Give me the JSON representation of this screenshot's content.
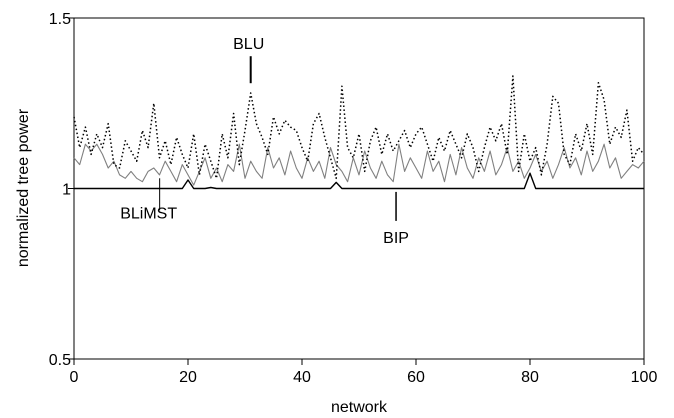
{
  "chart_data": {
    "type": "line",
    "title": "",
    "xlabel": "network",
    "ylabel": "normalized tree power",
    "xlim": [
      0,
      100
    ],
    "ylim": [
      0.5,
      1.5
    ],
    "x_ticks": [
      "0",
      "20",
      "40",
      "60",
      "80",
      "100"
    ],
    "y_ticks": [
      "0.5",
      "1",
      "1.5"
    ],
    "x_tick_values": [
      0,
      20,
      40,
      60,
      80,
      100
    ],
    "y_tick_values": [
      0.5,
      1.0,
      1.5
    ],
    "grid": false,
    "series": [
      {
        "name": "BIP",
        "style": "solid",
        "color": "#000000",
        "points": [
          [
            0,
            1.0
          ],
          [
            19,
            1.0
          ],
          [
            20,
            1.025
          ],
          [
            21,
            1.0
          ],
          [
            23,
            1.0
          ],
          [
            24,
            1.003
          ],
          [
            25,
            1.0
          ],
          [
            45,
            1.0
          ],
          [
            46,
            1.018
          ],
          [
            47,
            1.0
          ],
          [
            79,
            1.0
          ],
          [
            80,
            1.045
          ],
          [
            81,
            1.0
          ],
          [
            100,
            1.0
          ]
        ]
      },
      {
        "name": "BLiMST",
        "style": "solid",
        "color": "#808080",
        "values": [
          1.09,
          1.07,
          1.13,
          1.11,
          1.13,
          1.1,
          1.06,
          1.08,
          1.04,
          1.03,
          1.05,
          1.03,
          1.02,
          1.05,
          1.06,
          1.04,
          1.08,
          1.05,
          1.02,
          1.07,
          1.04,
          1.01,
          1.05,
          1.09,
          1.03,
          1.06,
          1.02,
          1.07,
          1.05,
          1.13,
          1.03,
          1.08,
          1.05,
          1.03,
          1.12,
          1.06,
          1.09,
          1.04,
          1.11,
          1.06,
          1.03,
          1.09,
          1.05,
          1.08,
          1.03,
          1.12,
          1.07,
          1.05,
          1.02,
          1.09,
          1.04,
          1.11,
          1.06,
          1.03,
          1.08,
          1.04,
          1.02,
          1.13,
          1.05,
          1.09,
          1.06,
          1.03,
          1.11,
          1.05,
          1.08,
          1.02,
          1.1,
          1.04,
          1.12,
          1.06,
          1.03,
          1.09,
          1.05,
          1.11,
          1.04,
          1.07,
          1.12,
          1.05,
          1.08,
          1.03,
          1.06,
          1.1,
          1.05,
          1.08,
          1.03,
          1.07,
          1.12,
          1.06,
          1.09,
          1.04,
          1.11,
          1.05,
          1.08,
          1.13,
          1.06,
          1.09,
          1.03,
          1.05,
          1.07,
          1.06,
          1.08
        ]
      },
      {
        "name": "BLU",
        "style": "dotted",
        "color": "#000000",
        "values": [
          1.21,
          1.12,
          1.18,
          1.1,
          1.16,
          1.12,
          1.19,
          1.07,
          1.06,
          1.14,
          1.11,
          1.08,
          1.17,
          1.12,
          1.25,
          1.09,
          1.14,
          1.07,
          1.15,
          1.1,
          1.06,
          1.16,
          1.04,
          1.13,
          1.08,
          1.03,
          1.16,
          1.09,
          1.22,
          1.07,
          1.17,
          1.28,
          1.19,
          1.15,
          1.1,
          1.21,
          1.16,
          1.2,
          1.18,
          1.17,
          1.12,
          1.08,
          1.19,
          1.22,
          1.15,
          1.09,
          1.03,
          1.3,
          1.12,
          1.09,
          1.16,
          1.05,
          1.14,
          1.18,
          1.1,
          1.16,
          1.11,
          1.14,
          1.17,
          1.12,
          1.16,
          1.18,
          1.13,
          1.08,
          1.15,
          1.11,
          1.17,
          1.13,
          1.09,
          1.16,
          1.12,
          1.05,
          1.12,
          1.18,
          1.14,
          1.19,
          1.1,
          1.33,
          1.05,
          1.16,
          1.08,
          1.12,
          1.04,
          1.13,
          1.27,
          1.25,
          1.1,
          1.07,
          1.16,
          1.11,
          1.19,
          1.1,
          1.31,
          1.26,
          1.13,
          1.18,
          1.15,
          1.23,
          1.08,
          1.12,
          1.1
        ]
      }
    ],
    "annotations": [
      {
        "text": "BLU",
        "series": "BLU",
        "x": 31,
        "y": 1.3
      },
      {
        "text": "BLiMST",
        "series": "BLiMST",
        "x": 14.5,
        "y": 0.96
      },
      {
        "text": "BIP",
        "series": "BIP",
        "x": 56.5,
        "y": 0.93
      }
    ]
  }
}
